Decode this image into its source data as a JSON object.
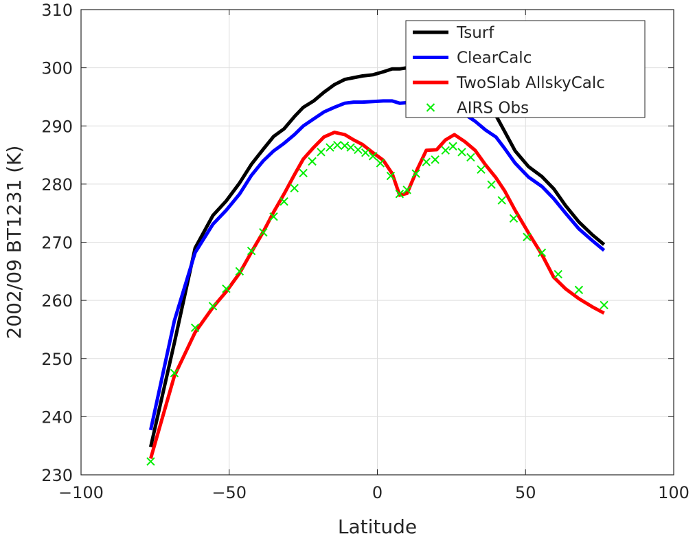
{
  "chart_data": {
    "type": "line",
    "title": "",
    "xlabel": "Latitude",
    "ylabel": "2002/09 BT1231 (K)",
    "xlim": [
      -100,
      100
    ],
    "ylim": [
      230,
      310
    ],
    "xticks": [
      -100,
      -50,
      0,
      50,
      100
    ],
    "xtick_labels": [
      "−100",
      "−50",
      "0",
      "50",
      "100"
    ],
    "yticks": [
      230,
      240,
      250,
      260,
      270,
      280,
      290,
      300,
      310
    ],
    "ytick_labels": [
      "230",
      "240",
      "250",
      "260",
      "270",
      "280",
      "290",
      "300",
      "310"
    ],
    "grid": true,
    "legend_position": "top-right",
    "series": [
      {
        "name": "Tsurf",
        "style": "line",
        "color": "#000000",
        "x": [
          -76.5,
          -68.5,
          -61.5,
          -55.5,
          -51,
          -46.5,
          -42.5,
          -38.5,
          -35,
          -31.5,
          -28,
          -25,
          -21.5,
          -18,
          -14.5,
          -11,
          -8,
          -5,
          -1.5,
          2,
          5,
          7.5,
          10,
          13.5,
          16.5,
          20,
          23,
          26,
          29.5,
          33,
          36.5,
          40,
          43,
          46.5,
          51,
          55.5,
          59.5,
          63.5,
          68,
          72.5,
          76.5
        ],
        "y": [
          234.8,
          252.7,
          269,
          274.6,
          277.1,
          280.2,
          283.4,
          286,
          288.2,
          289.5,
          291.6,
          293.2,
          294.3,
          295.8,
          297.1,
          298,
          298.3,
          298.6,
          298.8,
          299.3,
          299.8,
          299.8,
          300,
          300.3,
          300.4,
          300.2,
          300,
          298.6,
          297,
          295.5,
          293.6,
          291.8,
          289,
          285.7,
          283,
          281.3,
          279.2,
          276.3,
          273.5,
          271.3,
          269.6
        ]
      },
      {
        "name": "ClearCalc",
        "style": "line",
        "color": "#0000ff",
        "x": [
          -76.5,
          -68.5,
          -61.5,
          -55.5,
          -51,
          -46.5,
          -42.5,
          -38.5,
          -35,
          -31.5,
          -28,
          -25,
          -21.5,
          -18,
          -14.5,
          -11,
          -8,
          -5,
          -1.5,
          2,
          5,
          7.5,
          10,
          13.5,
          16.5,
          20,
          23,
          26,
          29.5,
          33,
          36.5,
          40,
          43,
          46.5,
          51,
          55.5,
          59.5,
          63.5,
          68,
          72.5,
          76.5
        ],
        "y": [
          237.7,
          256.5,
          268.2,
          273.1,
          275.5,
          278.3,
          281.5,
          284,
          285.7,
          287,
          288.5,
          290,
          291.2,
          292.4,
          293.2,
          293.9,
          294.1,
          294.1,
          294.2,
          294.3,
          294.3,
          293.9,
          294,
          294.4,
          294.8,
          294.8,
          294.6,
          293.6,
          292,
          290.8,
          289.3,
          288.1,
          286.1,
          283.6,
          281.2,
          279.6,
          277.5,
          275,
          272.3,
          270.3,
          268.6
        ]
      },
      {
        "name": "TwoSlab AllskyCalc",
        "style": "line",
        "color": "#ff0000",
        "x": [
          -76.5,
          -68.5,
          -61.5,
          -55.5,
          -51,
          -46.5,
          -42.5,
          -38.5,
          -35,
          -31.5,
          -28,
          -25,
          -21.5,
          -18,
          -14.5,
          -11,
          -8,
          -5,
          -1.5,
          2,
          5,
          7.5,
          10,
          13.5,
          16.5,
          20,
          23,
          26,
          29.5,
          33,
          36.5,
          40,
          43,
          46.5,
          51,
          55.5,
          59.5,
          63.5,
          68,
          72.5,
          76.5
        ],
        "y": [
          232.8,
          247,
          254.5,
          258.8,
          261.5,
          264.7,
          268.3,
          271.8,
          275.2,
          278.3,
          281.6,
          284.3,
          286.3,
          288.1,
          288.9,
          288.5,
          287.6,
          286.8,
          285.4,
          284.1,
          281.8,
          278.1,
          278.4,
          282.6,
          285.8,
          285.9,
          287.6,
          288.5,
          287.3,
          285.8,
          283.3,
          281.1,
          278.8,
          275.5,
          271.6,
          267.9,
          264,
          262,
          260.3,
          258.9,
          257.8
        ]
      },
      {
        "name": "AIRS Obs",
        "style": "marker-x",
        "color": "#00ee00",
        "x": [
          -76.5,
          -68.5,
          -61.5,
          -55.5,
          -51,
          -46.5,
          -42.5,
          -38.5,
          -35,
          -31.5,
          -28,
          -25,
          -22,
          -19,
          -16,
          -13.5,
          -11,
          -9,
          -6.5,
          -4,
          -1.5,
          1,
          4.5,
          7.5,
          10,
          13,
          16.5,
          19.5,
          23,
          25.5,
          28.5,
          31.5,
          35,
          38.5,
          42,
          46,
          50.5,
          55.5,
          61,
          68,
          76.5
        ],
        "y": [
          232.3,
          247.5,
          255.3,
          259,
          262,
          265,
          268.5,
          271.7,
          274.4,
          277,
          279.3,
          281.9,
          283.9,
          285.5,
          286.3,
          286.7,
          286.6,
          286.3,
          285.9,
          285.4,
          284.8,
          283.6,
          281.4,
          278.3,
          279,
          281.8,
          283.8,
          284.2,
          285.8,
          286.5,
          285.5,
          284.6,
          282.5,
          279.9,
          277.2,
          274.1,
          270.9,
          268.2,
          264.5,
          261.8,
          259.2
        ]
      }
    ]
  }
}
